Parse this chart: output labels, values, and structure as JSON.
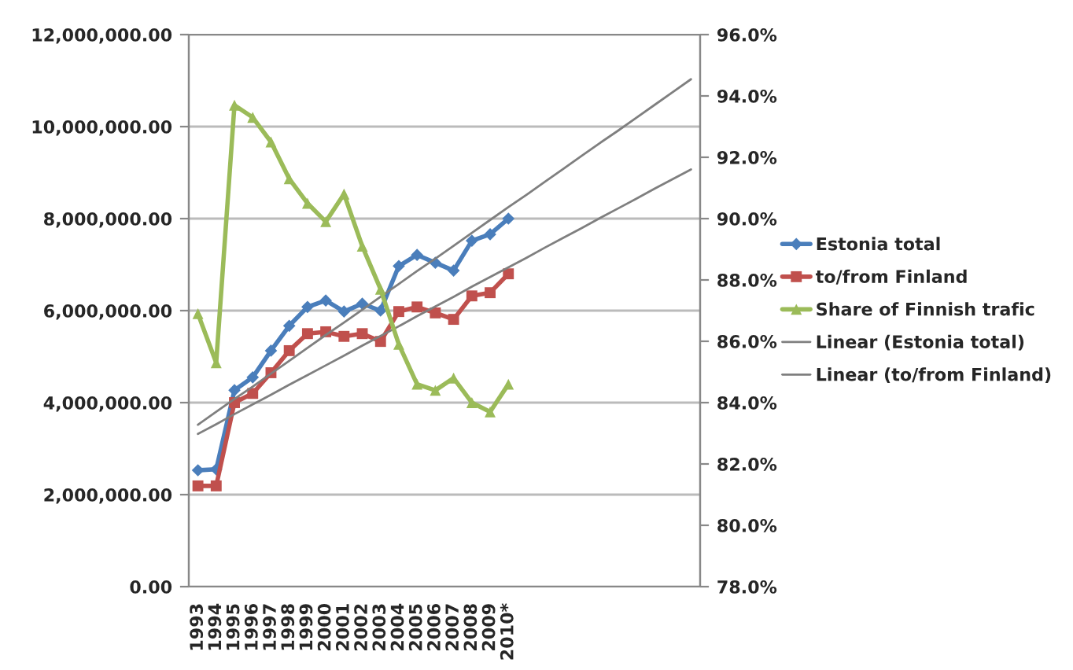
{
  "chart_data": {
    "type": "line",
    "categories": [
      "1993",
      "1994",
      "1995",
      "1996",
      "1997",
      "1998",
      "1999",
      "2000",
      "2001",
      "2002",
      "2003",
      "2004",
      "2005",
      "2006",
      "2007",
      "2008",
      "2009",
      "2010*",
      null,
      null,
      null,
      null,
      null,
      null,
      null,
      null,
      null,
      null
    ],
    "series": [
      {
        "name": "Estonia total",
        "color": "#4a7ebb",
        "marker": "diamond",
        "values": [
          2530000,
          2550000,
          4270000,
          4550000,
          5130000,
          5670000,
          6080000,
          6220000,
          5980000,
          6150000,
          6000000,
          6970000,
          7210000,
          7040000,
          6870000,
          7520000,
          7660000,
          8000000,
          null,
          null,
          null,
          null,
          null,
          null,
          null,
          null,
          null,
          null
        ]
      },
      {
        "name": "to/from Finland",
        "color": "#c0504d",
        "marker": "square",
        "values": [
          2190000,
          2190000,
          4000000,
          4200000,
          4650000,
          5130000,
          5500000,
          5540000,
          5440000,
          5500000,
          5330000,
          5980000,
          6080000,
          5950000,
          5810000,
          6320000,
          6390000,
          6800000,
          null,
          null,
          null,
          null,
          null,
          null,
          null,
          null,
          null,
          null
        ]
      },
      {
        "name": "Share of Finnish trafic",
        "color": "#9bbb59",
        "marker": "triangle",
        "axis": "y2",
        "values": [
          86.9,
          85.3,
          93.7,
          93.3,
          92.5,
          91.3,
          90.5,
          89.9,
          90.8,
          89.1,
          87.7,
          85.9,
          84.6,
          84.4,
          84.8,
          84.0,
          83.7,
          84.6,
          null,
          null,
          null,
          null,
          null,
          null,
          null,
          null,
          null,
          null
        ]
      },
      {
        "name": "Linear (Estonia total)",
        "color": "#7f7f7f",
        "marker": "none",
        "values": [
          3520000,
          3800000,
          4080000,
          4350000,
          4630000,
          4910000,
          5190000,
          5470000,
          5740000,
          6020000,
          6300000,
          6580000,
          6860000,
          7130000,
          7410000,
          7690000,
          7970000,
          8250000,
          8520000,
          8800000,
          9080000,
          9360000,
          9640000,
          9910000,
          10190000,
          10470000,
          10750000,
          11030000
        ]
      },
      {
        "name": "Linear (to/from Finland)",
        "color": "#7f7f7f",
        "marker": "none",
        "values": [
          3320000,
          3530000,
          3750000,
          3960000,
          4170000,
          4390000,
          4600000,
          4810000,
          5020000,
          5240000,
          5450000,
          5660000,
          5880000,
          6090000,
          6300000,
          6520000,
          6730000,
          6940000,
          7150000,
          7370000,
          7580000,
          7790000,
          8010000,
          8220000,
          8430000,
          8650000,
          8860000,
          9070000
        ]
      }
    ],
    "ylim": [
      0,
      12000000
    ],
    "yticks": [
      {
        "value": 0,
        "label": "0.00"
      },
      {
        "value": 2000000,
        "label": "2,000,000.00"
      },
      {
        "value": 4000000,
        "label": "4,000,000.00"
      },
      {
        "value": 6000000,
        "label": "6,000,000.00"
      },
      {
        "value": 8000000,
        "label": "8,000,000.00"
      },
      {
        "value": 10000000,
        "label": "10,000,000.00"
      },
      {
        "value": 12000000,
        "label": "12,000,000.00"
      }
    ],
    "y2lim": [
      78,
      96
    ],
    "y2ticks": [
      {
        "value": 78,
        "label": "78.0%"
      },
      {
        "value": 80,
        "label": "80.0%"
      },
      {
        "value": 82,
        "label": "82.0%"
      },
      {
        "value": 84,
        "label": "84.0%"
      },
      {
        "value": 86,
        "label": "86.0%"
      },
      {
        "value": 88,
        "label": "88.0%"
      },
      {
        "value": 90,
        "label": "90.0%"
      },
      {
        "value": 92,
        "label": "92.0%"
      },
      {
        "value": 94,
        "label": "94.0%"
      },
      {
        "value": 96,
        "label": "96.0%"
      }
    ],
    "grid": "y",
    "legend": "right"
  }
}
